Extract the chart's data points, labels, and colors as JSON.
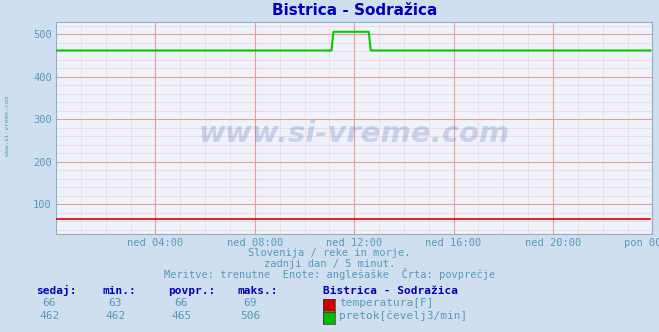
{
  "title": "Bistrica - Sodražica",
  "bg_color": "#d0dff0",
  "plot_bg_color": "#eef3fb",
  "grid_color_major": "#ee9999",
  "grid_color_minor": "#f8cccc",
  "title_color": "#0000bb",
  "axis_label_color": "#5599bb",
  "text_color": "#5599bb",
  "xlim": [
    0,
    288
  ],
  "ylim": [
    30,
    530
  ],
  "yticks": [
    100,
    200,
    300,
    400,
    500
  ],
  "xtick_labels": [
    "ned 04:00",
    "ned 08:00",
    "ned 12:00",
    "ned 16:00",
    "ned 20:00",
    "pon 00:00"
  ],
  "xtick_positions": [
    48,
    96,
    144,
    192,
    240,
    288
  ],
  "watermark": "www.si-vreme.com",
  "subtitle1": "Slovenija / reke in morje.",
  "subtitle2": "zadnji dan / 5 minut.",
  "subtitle3": "Meritve: trenutne  Enote: anglešaške  Črta: povprečje",
  "legend_title": "Bistrica - Sodražica",
  "legend_items": [
    {
      "label": "temperatura[F]",
      "color": "#cc0000"
    },
    {
      "label": "pretok[čevelj3/min]",
      "color": "#00bb00"
    }
  ],
  "table_headers": [
    "sedaj:",
    "min.:",
    "povpr.:",
    "maks.:"
  ],
  "table_row1": [
    66,
    63,
    66,
    69
  ],
  "table_row2": [
    462,
    462,
    465,
    506
  ],
  "temp_color": "#dd0000",
  "flow_color": "#00cc00",
  "flow_baseline": 462,
  "flow_spike_start": 134,
  "flow_spike_end": 152,
  "flow_spike_value": 506,
  "n_points": 288,
  "minor_interval": 20
}
